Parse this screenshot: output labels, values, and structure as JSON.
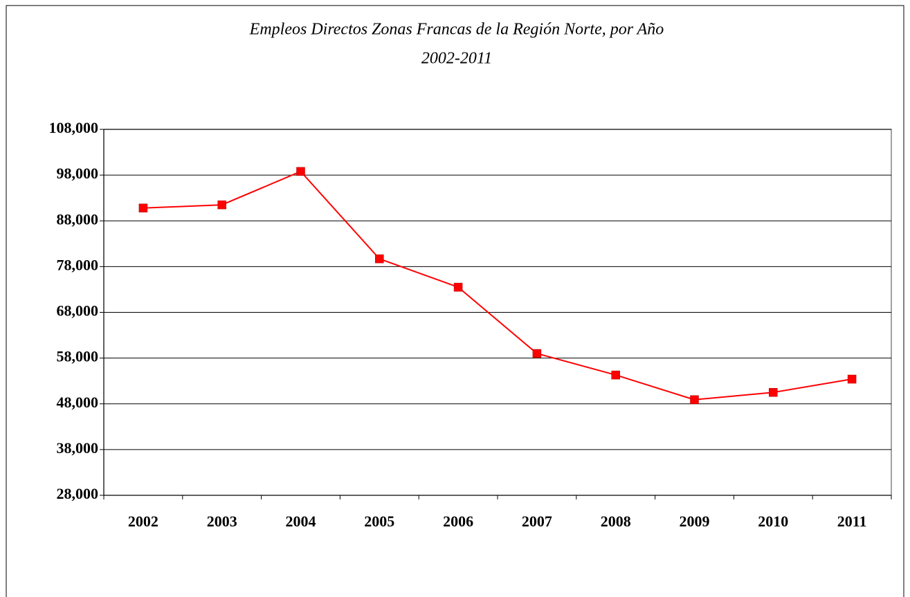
{
  "chart_data": {
    "type": "line",
    "title": "Empleos Directos Zonas Francas de la Región Norte, por Año",
    "subtitle": "2002-2011",
    "categories": [
      "2002",
      "2003",
      "2004",
      "2005",
      "2006",
      "2007",
      "2008",
      "2009",
      "2010",
      "2011"
    ],
    "series": [
      {
        "name": "Empleos Directos",
        "color": "#ff0000",
        "values": [
          90800,
          91500,
          98800,
          79700,
          73500,
          59000,
          54300,
          48900,
          50500,
          53400
        ]
      }
    ],
    "ylim": [
      28000,
      108000
    ],
    "yticks": [
      {
        "value": 28000,
        "label": "28,000"
      },
      {
        "value": 38000,
        "label": "38,000"
      },
      {
        "value": 48000,
        "label": "48,000"
      },
      {
        "value": 58000,
        "label": "58,000"
      },
      {
        "value": 68000,
        "label": "68,000"
      },
      {
        "value": 78000,
        "label": "78,000"
      },
      {
        "value": 88000,
        "label": "88,000"
      },
      {
        "value": 98000,
        "label": "98,000"
      },
      {
        "value": 108000,
        "label": "108,000"
      }
    ],
    "grid": true
  }
}
